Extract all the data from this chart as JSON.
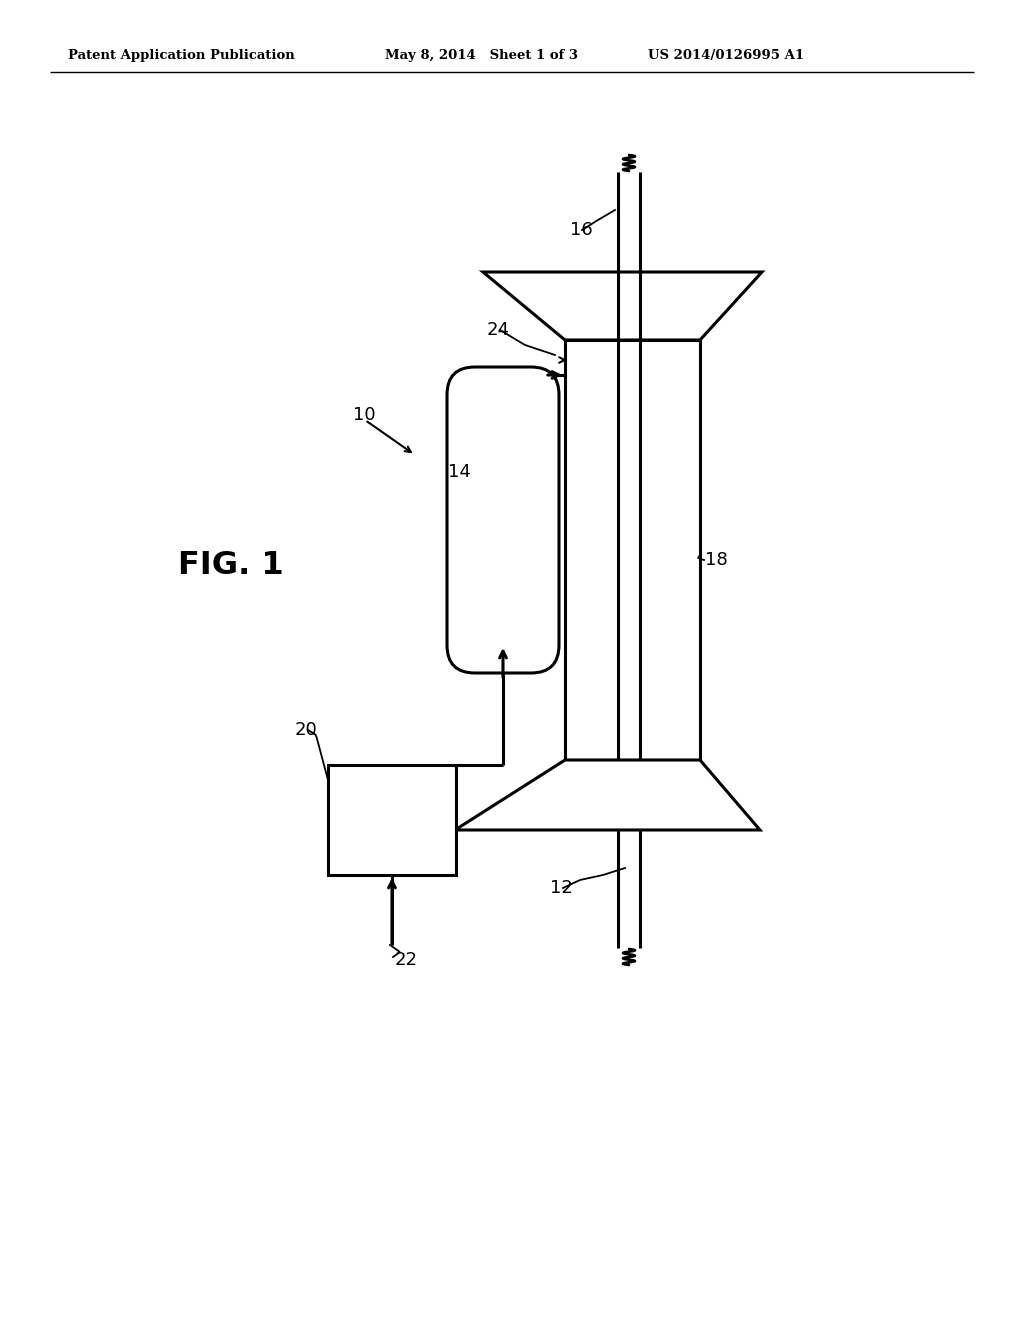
{
  "bg_color": "#ffffff",
  "header_left": "Patent Application Publication",
  "header_mid": "May 8, 2014   Sheet 1 of 3",
  "header_right": "US 2014/0126995 A1",
  "fig_label": "FIG. 1",
  "label_10": "10",
  "label_12": "12",
  "label_14": "14",
  "label_16": "16",
  "label_18": "18",
  "label_20": "20",
  "label_22": "22",
  "label_24": "24",
  "line_color": "#000000",
  "line_width": 2.2
}
